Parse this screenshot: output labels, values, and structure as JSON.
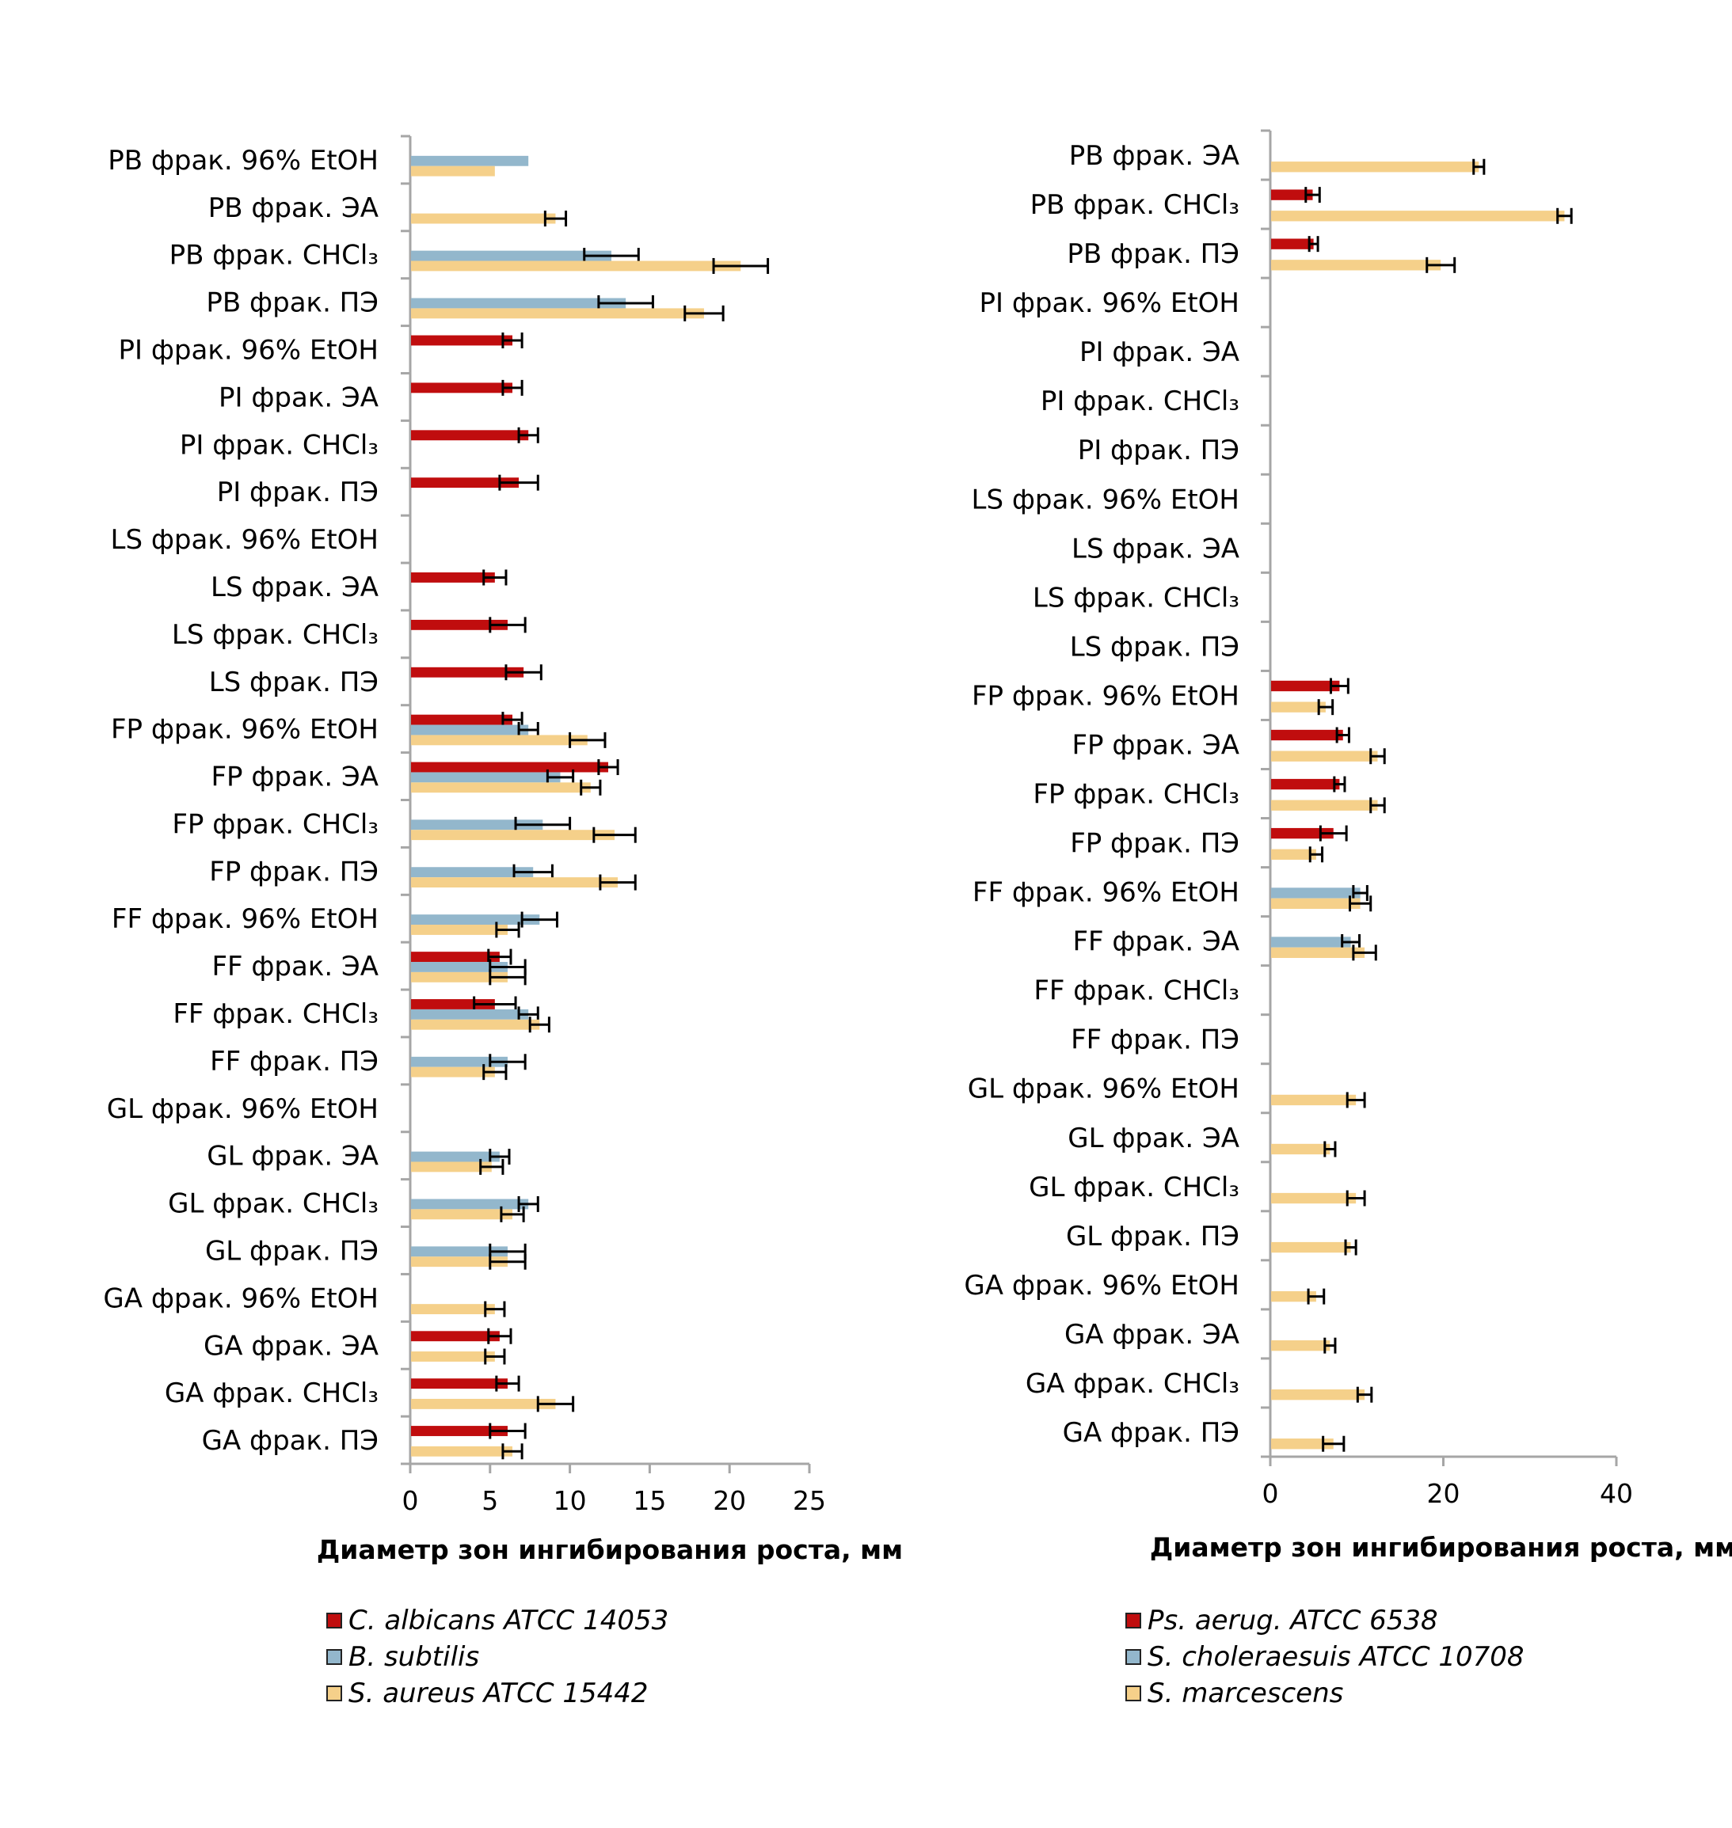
{
  "colors": {
    "red": "#C00D0E",
    "blue": "#93B7CC",
    "orange": "#F5D08A",
    "axis": "#A6A6A6",
    "error": "#000000"
  },
  "chart_data": [
    {
      "type": "bar",
      "orientation": "horizontal",
      "xlabel": "Диаметр зон ингибирования роста, мм",
      "xlim": [
        0,
        25
      ],
      "xticks": [
        "0",
        "5",
        "10",
        "15",
        "20",
        "25"
      ],
      "legend_position": "bottom",
      "categories": [
        "PB фрак. 96% EtOH",
        "PB фрак. ЭА",
        "PB фрак. CHCl₃",
        "PB фрак. ПЭ",
        "PI фрак. 96% EtOH",
        "PI фрак. ЭА",
        "PI фрак. CHCl₃",
        "PI фрак. ПЭ",
        "LS фрак. 96% EtOH",
        "LS фрак. ЭА",
        "LS фрак. CHCl₃",
        "LS фрак. ПЭ",
        "FP фрак. 96% EtOH",
        "FP фрак. ЭА",
        "FP фрак. CHCl₃",
        "FP фрак. ПЭ",
        "FF фрак. 96% EtOH",
        "FF фрак. ЭА",
        "FF фрак. CHCl₃",
        "FF фрак. ПЭ",
        "GL фрак. 96% EtOH",
        "GL фрак. ЭА",
        "GL фрак. CHCl₃",
        "GL фрак. ПЭ",
        "GA фрак. 96% EtOH",
        "GA фрак. ЭА",
        "GA фрак. CHCl₃",
        "GA фрак. ПЭ"
      ],
      "series": [
        {
          "name": "C. albicans ATCC 14053",
          "color": "red",
          "values": [
            null,
            null,
            null,
            null,
            6.4,
            6.4,
            7.4,
            6.8,
            null,
            5.3,
            6.1,
            7.1,
            6.4,
            12.4,
            null,
            null,
            null,
            5.6,
            5.3,
            null,
            null,
            null,
            null,
            null,
            null,
            5.6,
            6.1,
            6.1
          ],
          "errors": [
            null,
            null,
            null,
            null,
            0.6,
            0.6,
            0.6,
            1.2,
            null,
            0.7,
            1.1,
            1.1,
            0.6,
            0.6,
            null,
            null,
            null,
            0.7,
            1.3,
            null,
            null,
            null,
            null,
            null,
            null,
            0.7,
            0.7,
            1.1
          ]
        },
        {
          "name": "B. subtilis",
          "color": "blue",
          "values": [
            7.4,
            null,
            12.6,
            13.5,
            null,
            null,
            null,
            null,
            null,
            null,
            null,
            null,
            7.4,
            9.4,
            8.3,
            7.7,
            8.1,
            6.1,
            7.4,
            6.1,
            null,
            5.6,
            7.4,
            6.1,
            null,
            null,
            null,
            null
          ],
          "errors": [
            null,
            null,
            1.7,
            1.7,
            null,
            null,
            null,
            null,
            null,
            null,
            null,
            null,
            0.6,
            0.8,
            1.7,
            1.2,
            1.1,
            1.1,
            0.6,
            1.1,
            null,
            0.6,
            0.6,
            1.1,
            null,
            null,
            null,
            null
          ]
        },
        {
          "name": "S. aureus ATCC 15442",
          "color": "orange",
          "values": [
            5.3,
            9.1,
            20.7,
            18.4,
            null,
            null,
            null,
            null,
            null,
            null,
            null,
            null,
            11.1,
            11.3,
            12.8,
            13.0,
            6.1,
            6.1,
            8.1,
            5.3,
            null,
            5.1,
            6.4,
            6.1,
            5.3,
            5.3,
            9.1,
            6.4
          ],
          "errors": [
            null,
            0.65,
            1.7,
            1.2,
            null,
            null,
            null,
            null,
            null,
            null,
            null,
            null,
            1.1,
            0.6,
            1.3,
            1.1,
            0.7,
            1.1,
            0.6,
            0.7,
            null,
            0.7,
            0.7,
            1.1,
            0.6,
            0.6,
            1.1,
            0.6
          ]
        }
      ]
    },
    {
      "type": "bar",
      "orientation": "horizontal",
      "xlabel": "Диаметр зон ингибирования роста, мм",
      "xlim": [
        0,
        40
      ],
      "xticks": [
        "0",
        "20",
        "40"
      ],
      "legend_position": "bottom",
      "categories": [
        "PB фрак. ЭА",
        "PB фрак. CHCl₃",
        "PB фрак. ПЭ",
        "PI фрак. 96% EtOH",
        "PI фрак. ЭА",
        "PI фрак. CHCl₃",
        "PI фрак. ПЭ",
        "LS фрак. 96% EtOH",
        "LS фрак. ЭА",
        "LS фрак. CHCl₃",
        "LS фрак. ПЭ",
        "FP фрак. 96% EtOH",
        "FP фрак. ЭА",
        "FP фрак. CHCl₃",
        "FP фрак. ПЭ",
        "FF фрак. 96% EtOH",
        "FF фрак. ЭА",
        "FF фрак. CHCl₃",
        "FF фрак. ПЭ",
        "GL фрак. 96% EtOH",
        "GL фрак. ЭА",
        "GL фрак. CHCl₃",
        "GL фрак. ПЭ",
        "GA фрак. 96% EtOH",
        "GA фрак. ЭА",
        "GA фрак. CHCl₃",
        "GA фрак. ПЭ"
      ],
      "series": [
        {
          "name": "Ps. aerug. ATCC 6538",
          "color": "red",
          "values": [
            null,
            4.9,
            5.0,
            null,
            null,
            null,
            null,
            null,
            null,
            null,
            null,
            8.0,
            8.4,
            8.0,
            7.3,
            null,
            null,
            null,
            null,
            null,
            null,
            null,
            null,
            null,
            null,
            null,
            null
          ],
          "errors": [
            null,
            0.8,
            0.5,
            null,
            null,
            null,
            null,
            null,
            null,
            null,
            null,
            1.0,
            0.7,
            0.6,
            1.5,
            null,
            null,
            null,
            null,
            null,
            null,
            null,
            null,
            null,
            null,
            null,
            null
          ]
        },
        {
          "name": "S. choleraesuis ATCC 10708",
          "color": "blue",
          "values": [
            null,
            null,
            null,
            null,
            null,
            null,
            null,
            null,
            null,
            null,
            null,
            null,
            null,
            null,
            null,
            10.4,
            9.3,
            null,
            null,
            null,
            null,
            null,
            null,
            null,
            null,
            null,
            null
          ],
          "errors": [
            null,
            null,
            null,
            null,
            null,
            null,
            null,
            null,
            null,
            null,
            null,
            null,
            null,
            null,
            null,
            0.8,
            1.0,
            null,
            null,
            null,
            null,
            null,
            null,
            null,
            null,
            null,
            null
          ]
        },
        {
          "name": "S. marcescens",
          "color": "orange",
          "values": [
            24.1,
            34.0,
            19.7,
            null,
            null,
            null,
            null,
            null,
            null,
            null,
            null,
            6.4,
            12.4,
            12.4,
            5.3,
            10.4,
            10.9,
            null,
            null,
            9.9,
            6.9,
            9.9,
            9.3,
            5.3,
            6.9,
            10.9,
            7.3
          ],
          "errors": [
            0.6,
            0.8,
            1.6,
            null,
            null,
            null,
            null,
            null,
            null,
            null,
            null,
            0.8,
            0.8,
            0.8,
            0.7,
            1.2,
            1.3,
            null,
            null,
            1.0,
            0.6,
            1.0,
            0.6,
            0.9,
            0.6,
            0.8,
            1.2
          ]
        }
      ]
    }
  ]
}
